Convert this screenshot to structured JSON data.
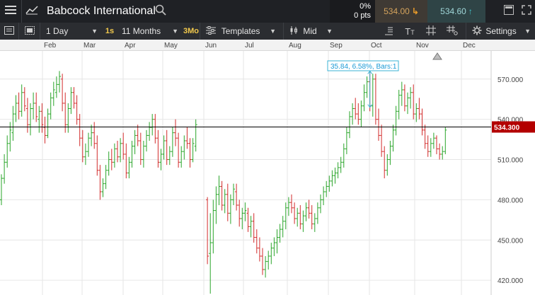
{
  "header": {
    "instrument": "Babcock International",
    "change_pct": "0%",
    "change_pts": "0 pts",
    "sell_price": "534.00",
    "buy_price": "534.60",
    "icons": [
      "menu-icon",
      "line-chart-icon",
      "search-icon",
      "popout-icon",
      "expand-icon"
    ]
  },
  "toolbar": {
    "interval": "1 Day",
    "interval_quick": "1s",
    "range": "11 Months",
    "range_quick": "3Mo",
    "templates_label": "Templates",
    "price_type": "Mid",
    "settings_label": "Settings",
    "tool_icons": [
      "drawing-tools-icon",
      "text-tool-icon",
      "crosshair-icon",
      "grid-icon",
      "settings-gear-icon"
    ]
  },
  "colors": {
    "up": "#2aa52a",
    "down": "#d22b2b",
    "current_price": "#b30000",
    "measure": "#3bb3d6",
    "topbar": "#1f2125",
    "toolbar": "#2b2d31"
  },
  "chart_data": {
    "type": "ohlc",
    "x_months": [
      "Feb",
      "Mar",
      "Apr",
      "May",
      "Jun",
      "Jul",
      "Aug",
      "Sep",
      "Oct",
      "Nov",
      "Dec"
    ],
    "y_ticks": [
      420,
      450,
      480,
      510,
      540,
      570
    ],
    "ylim": [
      409,
      591
    ],
    "current_price_label": "534.300",
    "current_price": 534.3,
    "grid": true,
    "measurement_label": "35.84, 6.58%, Bars:1",
    "series": [
      {
        "t": 0,
        "v": [
          480,
          499,
          476,
          496
        ]
      },
      {
        "t": 2,
        "v": [
          496,
          514,
          492,
          508
        ]
      },
      {
        "t": 4,
        "v": [
          508,
          528,
          504,
          522
        ]
      },
      {
        "t": 6,
        "v": [
          522,
          538,
          516,
          532
        ]
      },
      {
        "t": 8,
        "v": [
          530,
          550,
          524,
          544
        ]
      },
      {
        "t": 10,
        "v": [
          544,
          558,
          538,
          552
        ]
      },
      {
        "t": 12,
        "v": [
          552,
          560,
          540,
          546
        ]
      },
      {
        "t": 14,
        "v": [
          546,
          566,
          542,
          560
        ]
      },
      {
        "t": 16,
        "v": [
          560,
          564,
          546,
          550
        ]
      },
      {
        "t": 18,
        "v": [
          548,
          556,
          530,
          536
        ]
      },
      {
        "t": 20,
        "v": [
          536,
          552,
          528,
          548
        ]
      },
      {
        "t": 22,
        "v": [
          548,
          560,
          540,
          552
        ]
      },
      {
        "t": 24,
        "v": [
          552,
          560,
          538,
          542
        ]
      },
      {
        "t": 26,
        "v": [
          540,
          550,
          530,
          546
        ]
      },
      {
        "t": 28,
        "v": [
          546,
          552,
          530,
          536
        ]
      },
      {
        "t": 30,
        "v": [
          534,
          542,
          522,
          528
        ]
      },
      {
        "t": 32,
        "v": [
          528,
          548,
          526,
          544
        ]
      },
      {
        "t": 34,
        "v": [
          544,
          560,
          540,
          556
        ]
      },
      {
        "t": 36,
        "v": [
          556,
          568,
          550,
          562
        ]
      },
      {
        "t": 38,
        "v": [
          560,
          572,
          556,
          566
        ]
      },
      {
        "t": 40,
        "v": [
          566,
          576,
          560,
          572
        ]
      },
      {
        "t": 42,
        "v": [
          570,
          574,
          546,
          552
        ]
      },
      {
        "t": 44,
        "v": [
          552,
          560,
          530,
          536
        ]
      },
      {
        "t": 46,
        "v": [
          536,
          552,
          530,
          548
        ]
      },
      {
        "t": 48,
        "v": [
          548,
          564,
          544,
          560
        ]
      },
      {
        "t": 50,
        "v": [
          560,
          564,
          548,
          552
        ]
      },
      {
        "t": 52,
        "v": [
          552,
          558,
          536,
          540
        ]
      },
      {
        "t": 54,
        "v": [
          540,
          544,
          520,
          526
        ]
      },
      {
        "t": 56,
        "v": [
          526,
          532,
          508,
          512
        ]
      },
      {
        "t": 58,
        "v": [
          512,
          522,
          506,
          516
        ]
      },
      {
        "t": 60,
        "v": [
          516,
          530,
          512,
          526
        ]
      },
      {
        "t": 62,
        "v": [
          526,
          536,
          520,
          530
        ]
      },
      {
        "t": 64,
        "v": [
          530,
          538,
          518,
          522
        ]
      },
      {
        "t": 66,
        "v": [
          522,
          528,
          498,
          502
        ]
      },
      {
        "t": 68,
        "v": [
          502,
          506,
          480,
          486
        ]
      },
      {
        "t": 70,
        "v": [
          486,
          496,
          482,
          492
        ]
      },
      {
        "t": 72,
        "v": [
          492,
          506,
          488,
          502
        ]
      },
      {
        "t": 74,
        "v": [
          502,
          516,
          498,
          510
        ]
      },
      {
        "t": 76,
        "v": [
          510,
          518,
          502,
          508
        ]
      },
      {
        "t": 78,
        "v": [
          508,
          522,
          504,
          518
        ]
      },
      {
        "t": 80,
        "v": [
          518,
          524,
          508,
          512
        ]
      },
      {
        "t": 82,
        "v": [
          512,
          526,
          508,
          522
        ]
      },
      {
        "t": 84,
        "v": [
          522,
          530,
          510,
          514
        ]
      },
      {
        "t": 86,
        "v": [
          514,
          522,
          496,
          500
        ]
      },
      {
        "t": 88,
        "v": [
          500,
          512,
          496,
          508
        ]
      },
      {
        "t": 90,
        "v": [
          508,
          524,
          504,
          520
        ]
      },
      {
        "t": 92,
        "v": [
          520,
          532,
          514,
          528
        ]
      },
      {
        "t": 94,
        "v": [
          528,
          536,
          520,
          524
        ]
      },
      {
        "t": 96,
        "v": [
          524,
          530,
          506,
          510
        ]
      },
      {
        "t": 98,
        "v": [
          510,
          524,
          504,
          520
        ]
      },
      {
        "t": 100,
        "v": [
          520,
          532,
          516,
          528
        ]
      },
      {
        "t": 102,
        "v": [
          528,
          538,
          524,
          534
        ]
      },
      {
        "t": 104,
        "v": [
          534,
          544,
          528,
          540
        ]
      },
      {
        "t": 106,
        "v": [
          540,
          544,
          522,
          526
        ]
      },
      {
        "t": 108,
        "v": [
          526,
          532,
          504,
          508
        ]
      },
      {
        "t": 110,
        "v": [
          508,
          518,
          502,
          514
        ]
      },
      {
        "t": 112,
        "v": [
          514,
          528,
          510,
          524
        ]
      },
      {
        "t": 114,
        "v": [
          524,
          532,
          506,
          510
        ]
      },
      {
        "t": 116,
        "v": [
          510,
          520,
          506,
          516
        ]
      },
      {
        "t": 118,
        "v": [
          516,
          534,
          512,
          530
        ]
      },
      {
        "t": 120,
        "v": [
          530,
          540,
          520,
          526
        ]
      },
      {
        "t": 122,
        "v": [
          526,
          530,
          504,
          508
        ]
      },
      {
        "t": 124,
        "v": [
          508,
          520,
          504,
          516
        ]
      },
      {
        "t": 126,
        "v": [
          516,
          528,
          510,
          524
        ]
      },
      {
        "t": 128,
        "v": [
          524,
          534,
          518,
          522
        ]
      },
      {
        "t": 130,
        "v": [
          522,
          526,
          504,
          510
        ]
      },
      {
        "t": 132,
        "v": [
          510,
          526,
          508,
          522
        ]
      },
      {
        "t": 134,
        "v": [
          520,
          540,
          516,
          536
        ]
      },
      {
        "t": 142,
        "v": [
          480,
          482,
          432,
          438
        ]
      },
      {
        "t": 144,
        "v": [
          440,
          470,
          410,
          448
        ]
      },
      {
        "t": 146,
        "v": [
          448,
          480,
          440,
          472
        ]
      },
      {
        "t": 148,
        "v": [
          472,
          490,
          462,
          484
        ]
      },
      {
        "t": 150,
        "v": [
          484,
          498,
          476,
          490
        ]
      },
      {
        "t": 152,
        "v": [
          490,
          494,
          472,
          476
        ]
      },
      {
        "t": 154,
        "v": [
          476,
          488,
          470,
          484
        ]
      },
      {
        "t": 156,
        "v": [
          484,
          492,
          464,
          470
        ]
      },
      {
        "t": 158,
        "v": [
          470,
          484,
          462,
          480
        ]
      },
      {
        "t": 160,
        "v": [
          480,
          492,
          476,
          488
        ]
      },
      {
        "t": 162,
        "v": [
          486,
          492,
          472,
          476
        ]
      },
      {
        "t": 164,
        "v": [
          476,
          480,
          460,
          466
        ]
      },
      {
        "t": 166,
        "v": [
          466,
          474,
          458,
          470
        ]
      },
      {
        "t": 168,
        "v": [
          470,
          478,
          464,
          472
        ]
      },
      {
        "t": 170,
        "v": [
          470,
          474,
          456,
          460
        ]
      },
      {
        "t": 172,
        "v": [
          460,
          468,
          452,
          464
        ]
      },
      {
        "t": 174,
        "v": [
          464,
          470,
          448,
          452
        ]
      },
      {
        "t": 176,
        "v": [
          452,
          458,
          440,
          444
        ]
      },
      {
        "t": 178,
        "v": [
          444,
          452,
          434,
          438
        ]
      },
      {
        "t": 180,
        "v": [
          438,
          444,
          424,
          428
        ]
      },
      {
        "t": 182,
        "v": [
          428,
          438,
          422,
          434
        ]
      },
      {
        "t": 184,
        "v": [
          434,
          442,
          428,
          438
        ]
      },
      {
        "t": 186,
        "v": [
          438,
          448,
          432,
          444
        ]
      },
      {
        "t": 188,
        "v": [
          444,
          452,
          438,
          448
        ]
      },
      {
        "t": 190,
        "v": [
          448,
          458,
          440,
          452
        ]
      },
      {
        "t": 192,
        "v": [
          452,
          462,
          448,
          458
        ]
      },
      {
        "t": 194,
        "v": [
          458,
          468,
          452,
          464
        ]
      },
      {
        "t": 196,
        "v": [
          464,
          478,
          458,
          474
        ]
      },
      {
        "t": 198,
        "v": [
          474,
          482,
          468,
          478
        ]
      },
      {
        "t": 200,
        "v": [
          478,
          484,
          470,
          474
        ]
      },
      {
        "t": 202,
        "v": [
          474,
          478,
          462,
          466
        ]
      },
      {
        "t": 204,
        "v": [
          466,
          474,
          460,
          470
        ]
      },
      {
        "t": 206,
        "v": [
          470,
          476,
          458,
          462
        ]
      },
      {
        "t": 208,
        "v": [
          462,
          472,
          456,
          468
        ]
      },
      {
        "t": 210,
        "v": [
          468,
          478,
          464,
          474
        ]
      },
      {
        "t": 212,
        "v": [
          474,
          480,
          466,
          470
        ]
      },
      {
        "t": 214,
        "v": [
          470,
          476,
          458,
          462
        ]
      },
      {
        "t": 216,
        "v": [
          462,
          470,
          456,
          466
        ]
      },
      {
        "t": 218,
        "v": [
          466,
          478,
          462,
          474
        ]
      },
      {
        "t": 220,
        "v": [
          474,
          484,
          470,
          480
        ]
      },
      {
        "t": 222,
        "v": [
          480,
          490,
          476,
          486
        ]
      },
      {
        "t": 224,
        "v": [
          486,
          494,
          482,
          490
        ]
      },
      {
        "t": 226,
        "v": [
          490,
          498,
          486,
          494
        ]
      },
      {
        "t": 228,
        "v": [
          494,
          502,
          490,
          498
        ]
      },
      {
        "t": 230,
        "v": [
          498,
          504,
          492,
          500
        ]
      },
      {
        "t": 232,
        "v": [
          500,
          508,
          496,
          504
        ]
      },
      {
        "t": 234,
        "v": [
          504,
          512,
          500,
          508
        ]
      },
      {
        "t": 236,
        "v": [
          508,
          522,
          504,
          518
        ]
      },
      {
        "t": 238,
        "v": [
          518,
          534,
          514,
          530
        ]
      },
      {
        "t": 240,
        "v": [
          530,
          546,
          526,
          542
        ]
      },
      {
        "t": 242,
        "v": [
          542,
          552,
          536,
          548
        ]
      },
      {
        "t": 244,
        "v": [
          548,
          556,
          540,
          544
        ]
      },
      {
        "t": 246,
        "v": [
          544,
          552,
          536,
          540
        ]
      },
      {
        "t": 248,
        "v": [
          540,
          554,
          534,
          550
        ]
      },
      {
        "t": 250,
        "v": [
          550,
          566,
          546,
          560
        ]
      },
      {
        "t": 252,
        "v": [
          560,
          572,
          556,
          568
        ]
      },
      {
        "t": 254,
        "v": [
          568,
          578,
          546,
          550
        ]
      },
      {
        "t": 256,
        "v": [
          550,
          574,
          542,
          570
        ]
      },
      {
        "t": 258,
        "v": [
          570,
          574,
          536,
          540
        ]
      },
      {
        "t": 260,
        "v": [
          540,
          548,
          524,
          528
        ]
      },
      {
        "t": 262,
        "v": [
          528,
          536,
          512,
          516
        ]
      },
      {
        "t": 264,
        "v": [
          516,
          520,
          496,
          502
        ]
      },
      {
        "t": 266,
        "v": [
          502,
          514,
          498,
          510
        ]
      },
      {
        "t": 268,
        "v": [
          510,
          524,
          506,
          520
        ]
      },
      {
        "t": 270,
        "v": [
          520,
          536,
          516,
          532
        ]
      },
      {
        "t": 272,
        "v": [
          532,
          550,
          528,
          546
        ]
      },
      {
        "t": 274,
        "v": [
          546,
          562,
          540,
          558
        ]
      },
      {
        "t": 276,
        "v": [
          558,
          568,
          550,
          562
        ]
      },
      {
        "t": 278,
        "v": [
          562,
          566,
          546,
          550
        ]
      },
      {
        "t": 280,
        "v": [
          550,
          560,
          544,
          556
        ]
      },
      {
        "t": 282,
        "v": [
          556,
          564,
          548,
          560
        ]
      },
      {
        "t": 284,
        "v": [
          560,
          566,
          540,
          544
        ]
      },
      {
        "t": 286,
        "v": [
          544,
          552,
          538,
          548
        ]
      },
      {
        "t": 288,
        "v": [
          548,
          556,
          540,
          544
        ]
      },
      {
        "t": 290,
        "v": [
          544,
          548,
          528,
          532
        ]
      },
      {
        "t": 292,
        "v": [
          532,
          536,
          518,
          522
        ]
      },
      {
        "t": 294,
        "v": [
          522,
          528,
          512,
          516
        ]
      },
      {
        "t": 296,
        "v": [
          516,
          526,
          512,
          522
        ]
      },
      {
        "t": 298,
        "v": [
          522,
          530,
          518,
          526
        ]
      },
      {
        "t": 300,
        "v": [
          526,
          528,
          514,
          518
        ]
      },
      {
        "t": 302,
        "v": [
          518,
          522,
          510,
          514
        ]
      },
      {
        "t": 304,
        "v": [
          514,
          520,
          510,
          516
        ]
      },
      {
        "t": 306,
        "v": [
          516,
          534,
          514,
          532
        ]
      }
    ]
  }
}
